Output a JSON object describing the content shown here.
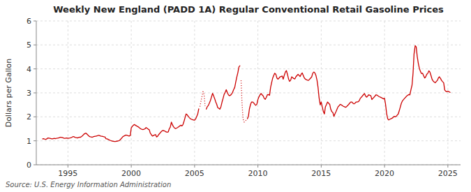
{
  "chart_data": {
    "type": "line",
    "title": "Weekly New England (PADD 1A) Regular Conventional Retail Gasoline Prices",
    "ylabel": "Dollars per Gallon",
    "source": "Source: U.S. Energy Information Administration",
    "xlim": [
      1992.5,
      2026.0
    ],
    "ylim": [
      0,
      6
    ],
    "xticks": [
      1995,
      2000,
      2005,
      2010,
      2015,
      2020,
      2025
    ],
    "yticks": [
      0,
      1,
      2,
      3,
      4,
      5,
      6
    ],
    "grid": true,
    "series": [
      {
        "color": "#cc0000",
        "line_style": "solid",
        "x": [
          1993.0,
          1993.08,
          1993.17,
          1993.25,
          1993.33,
          1993.42,
          1993.5,
          1993.58,
          1993.67,
          1993.75,
          1993.83,
          1993.92,
          1994.0,
          1994.08,
          1994.17,
          1994.25,
          1994.33,
          1994.42,
          1994.5,
          1994.58,
          1994.67,
          1994.75,
          1994.83,
          1994.92,
          1995.0,
          1995.08,
          1995.17,
          1995.25,
          1995.33,
          1995.42,
          1995.5,
          1995.58,
          1995.67,
          1995.75,
          1995.83,
          1995.92,
          1996.0,
          1996.08,
          1996.17,
          1996.25,
          1996.33,
          1996.42,
          1996.5,
          1996.58,
          1996.67,
          1996.75,
          1996.83,
          1996.92,
          1997.0,
          1997.08,
          1997.17,
          1997.25,
          1997.33,
          1997.42,
          1997.5,
          1997.58,
          1997.67,
          1997.75,
          1997.83,
          1997.92,
          1998.0,
          1998.08,
          1998.17,
          1998.25,
          1998.33,
          1998.42,
          1998.5,
          1998.58,
          1998.67,
          1998.75,
          1998.83,
          1998.92,
          1999.0,
          1999.08,
          1999.17,
          1999.25,
          1999.33,
          1999.42,
          1999.5,
          1999.58,
          1999.67,
          1999.75,
          1999.83,
          1999.92,
          2000.0,
          2000.08,
          2000.17,
          2000.25,
          2000.33,
          2000.42,
          2000.5,
          2000.58,
          2000.67,
          2000.75,
          2000.83,
          2000.92,
          2001.0,
          2001.08,
          2001.17,
          2001.25,
          2001.33,
          2001.42,
          2001.5,
          2001.58,
          2001.67,
          2001.75,
          2001.83,
          2001.92,
          2002.0,
          2002.08,
          2002.17,
          2002.25,
          2002.33,
          2002.42,
          2002.5,
          2002.58,
          2002.67,
          2002.75,
          2002.83,
          2002.92,
          2003.0,
          2003.08,
          2003.17,
          2003.25,
          2003.33,
          2003.42,
          2003.5,
          2003.58,
          2003.67,
          2003.75,
          2003.83,
          2003.92,
          2004.0,
          2004.08,
          2004.17,
          2004.25,
          2004.33,
          2004.42,
          2004.5,
          2004.58,
          2004.67,
          2004.75,
          2004.83,
          2004.92,
          2005.0,
          2005.08,
          2005.17,
          2005.25,
          2005.33
        ],
        "values": [
          1.08,
          1.09,
          1.07,
          1.06,
          1.08,
          1.12,
          1.11,
          1.1,
          1.09,
          1.08,
          1.09,
          1.1,
          1.09,
          1.1,
          1.11,
          1.12,
          1.13,
          1.15,
          1.14,
          1.13,
          1.11,
          1.1,
          1.11,
          1.12,
          1.1,
          1.11,
          1.12,
          1.13,
          1.15,
          1.18,
          1.16,
          1.14,
          1.13,
          1.12,
          1.14,
          1.15,
          1.15,
          1.18,
          1.22,
          1.27,
          1.3,
          1.32,
          1.28,
          1.24,
          1.19,
          1.17,
          1.16,
          1.15,
          1.17,
          1.18,
          1.19,
          1.2,
          1.21,
          1.23,
          1.22,
          1.2,
          1.19,
          1.18,
          1.17,
          1.16,
          1.09,
          1.08,
          1.06,
          1.04,
          1.02,
          1.0,
          0.99,
          0.98,
          0.97,
          0.97,
          0.98,
          0.99,
          1.0,
          1.02,
          1.07,
          1.12,
          1.17,
          1.2,
          1.22,
          1.24,
          1.23,
          1.21,
          1.2,
          1.22,
          1.54,
          1.6,
          1.65,
          1.68,
          1.65,
          1.62,
          1.6,
          1.57,
          1.53,
          1.5,
          1.48,
          1.47,
          1.48,
          1.5,
          1.55,
          1.52,
          1.49,
          1.46,
          1.32,
          1.26,
          1.2,
          1.22,
          1.24,
          1.26,
          1.16,
          1.19,
          1.26,
          1.31,
          1.36,
          1.41,
          1.43,
          1.42,
          1.4,
          1.37,
          1.36,
          1.37,
          1.5,
          1.57,
          1.78,
          1.67,
          1.59,
          1.53,
          1.51,
          1.53,
          1.56,
          1.59,
          1.62,
          1.65,
          1.62,
          1.67,
          1.82,
          1.97,
          2.12,
          2.08,
          2.02,
          1.97,
          1.92,
          1.9,
          1.88,
          1.87,
          1.86,
          1.91,
          2.02,
          2.12,
          2.33
        ]
      },
      {
        "color": "#cc0000",
        "line_style": "dotted",
        "x": [
          2005.42,
          2005.5,
          2005.58,
          2005.67,
          2005.75,
          2005.83
        ],
        "values": [
          2.43,
          2.64,
          2.84,
          3.05,
          2.93,
          2.45
        ]
      },
      {
        "color": "#cc0000",
        "line_style": "solid",
        "x": [
          2005.92,
          2006.0,
          2006.08,
          2006.17,
          2006.25,
          2006.33,
          2006.42,
          2006.5,
          2006.58,
          2006.67,
          2006.75,
          2006.83,
          2006.92,
          2007.0,
          2007.08,
          2007.17,
          2007.25,
          2007.33,
          2007.42,
          2007.5,
          2007.58,
          2007.67,
          2007.75,
          2007.83,
          2007.92,
          2008.0,
          2008.08,
          2008.17,
          2008.25,
          2008.33,
          2008.42,
          2008.5,
          2008.58
        ],
        "values": [
          2.32,
          2.42,
          2.47,
          2.58,
          2.68,
          2.82,
          2.98,
          2.88,
          2.77,
          2.62,
          2.52,
          2.38,
          2.35,
          2.32,
          2.42,
          2.62,
          2.77,
          2.93,
          3.03,
          3.13,
          3.02,
          2.92,
          2.88,
          2.9,
          2.95,
          3.02,
          3.13,
          3.23,
          3.45,
          3.65,
          3.85,
          4.08,
          4.13
        ]
      },
      {
        "color": "#cc0000",
        "line_style": "dotted",
        "x": [
          2008.67,
          2008.75,
          2008.83,
          2008.92,
          2009.0,
          2009.08
        ],
        "values": [
          3.52,
          2.52,
          1.9,
          1.78,
          1.82,
          1.87
        ]
      },
      {
        "color": "#cc0000",
        "line_style": "solid",
        "x": [
          2009.17,
          2009.25,
          2009.33,
          2009.42,
          2009.5,
          2009.58,
          2009.67,
          2009.75,
          2009.83,
          2009.92,
          2010.0,
          2010.08,
          2010.17,
          2010.25,
          2010.33,
          2010.42,
          2010.5,
          2010.58,
          2010.67,
          2010.75,
          2010.83,
          2010.92,
          2011.0,
          2011.08,
          2011.17,
          2011.25,
          2011.33,
          2011.42,
          2011.5,
          2011.58,
          2011.67,
          2011.75,
          2011.83,
          2011.92,
          2012.0,
          2012.08,
          2012.17,
          2012.25,
          2012.33,
          2012.42,
          2012.5,
          2012.58,
          2012.67,
          2012.75,
          2012.83,
          2012.92,
          2013.0,
          2013.08,
          2013.17,
          2013.25,
          2013.33,
          2013.42,
          2013.5,
          2013.58,
          2013.67,
          2013.75,
          2013.83,
          2013.92,
          2014.0,
          2014.08,
          2014.17,
          2014.25,
          2014.33,
          2014.42,
          2014.5,
          2014.58,
          2014.67,
          2014.75,
          2014.83,
          2014.92,
          2015.0,
          2015.08,
          2015.17,
          2015.25,
          2015.33,
          2015.42,
          2015.5,
          2015.58,
          2015.67,
          2015.75,
          2015.83,
          2015.92,
          2016.0,
          2016.08,
          2016.17,
          2016.25,
          2016.33,
          2016.42,
          2016.5,
          2016.58,
          2016.67,
          2016.75,
          2016.83,
          2016.92,
          2017.0,
          2017.08,
          2017.17,
          2017.25,
          2017.33,
          2017.42,
          2017.5,
          2017.58,
          2017.67,
          2017.75,
          2017.83,
          2017.92,
          2018.0,
          2018.08,
          2018.17,
          2018.25,
          2018.33,
          2018.42,
          2018.5,
          2018.58,
          2018.67,
          2018.75,
          2018.83,
          2018.92,
          2019.0,
          2019.08,
          2019.17,
          2019.25,
          2019.33,
          2019.42,
          2019.5,
          2019.58,
          2019.67,
          2019.75,
          2019.83,
          2019.92,
          2020.0,
          2020.08,
          2020.17,
          2020.25,
          2020.33,
          2020.42,
          2020.5,
          2020.58,
          2020.67,
          2020.75,
          2020.83,
          2020.92,
          2021.0,
          2021.08,
          2021.17,
          2021.25,
          2021.33,
          2021.42,
          2021.5,
          2021.58,
          2021.67,
          2021.75,
          2021.83,
          2021.92,
          2022.0,
          2022.08,
          2022.17,
          2022.25,
          2022.33,
          2022.42,
          2022.5,
          2022.58,
          2022.67,
          2022.75,
          2022.83,
          2022.92,
          2023.0,
          2023.08,
          2023.17,
          2023.25,
          2023.33,
          2023.42,
          2023.5,
          2023.58,
          2023.67,
          2023.75,
          2023.83,
          2023.92,
          2024.0,
          2024.08,
          2024.17,
          2024.25,
          2024.33,
          2024.42,
          2024.5,
          2024.58,
          2024.67,
          2024.75,
          2024.83,
          2024.92,
          2025.0,
          2025.08,
          2025.17
        ],
        "values": [
          1.92,
          2.02,
          2.33,
          2.52,
          2.62,
          2.62,
          2.58,
          2.52,
          2.48,
          2.53,
          2.72,
          2.83,
          2.92,
          2.97,
          2.92,
          2.87,
          2.77,
          2.73,
          2.82,
          2.92,
          2.93,
          2.9,
          3.22,
          3.42,
          3.62,
          3.73,
          3.82,
          3.77,
          3.62,
          3.57,
          3.62,
          3.67,
          3.68,
          3.7,
          3.57,
          3.73,
          3.87,
          3.93,
          3.78,
          3.58,
          3.48,
          3.52,
          3.67,
          3.63,
          3.6,
          3.58,
          3.67,
          3.72,
          3.77,
          3.73,
          3.68,
          3.78,
          3.83,
          3.73,
          3.62,
          3.57,
          3.55,
          3.53,
          3.52,
          3.57,
          3.62,
          3.67,
          3.82,
          3.87,
          3.83,
          3.73,
          3.52,
          3.22,
          2.8,
          2.5,
          2.62,
          2.42,
          2.22,
          2.12,
          2.42,
          2.52,
          2.62,
          2.57,
          2.52,
          2.32,
          2.22,
          2.18,
          2.02,
          2.12,
          2.22,
          2.32,
          2.42,
          2.47,
          2.52,
          2.5,
          2.47,
          2.44,
          2.42,
          2.4,
          2.42,
          2.47,
          2.52,
          2.57,
          2.62,
          2.62,
          2.57,
          2.54,
          2.57,
          2.62,
          2.62,
          2.63,
          2.67,
          2.77,
          2.82,
          2.87,
          2.92,
          2.97,
          2.87,
          2.82,
          2.87,
          2.92,
          2.9,
          2.88,
          2.72,
          2.77,
          2.82,
          2.87,
          2.92,
          2.9,
          2.87,
          2.84,
          2.82,
          2.8,
          2.78,
          2.75,
          2.77,
          2.52,
          2.12,
          1.92,
          1.87,
          1.9,
          1.92,
          1.94,
          1.97,
          2.02,
          2.0,
          2.02,
          2.07,
          2.12,
          2.27,
          2.42,
          2.57,
          2.67,
          2.72,
          2.77,
          2.82,
          2.87,
          2.9,
          2.93,
          2.92,
          3.12,
          3.32,
          3.82,
          4.63,
          4.97,
          4.92,
          4.52,
          4.22,
          4.02,
          3.9,
          3.8,
          3.82,
          3.72,
          3.62,
          3.67,
          3.77,
          3.82,
          3.92,
          3.87,
          3.72,
          3.57,
          3.5,
          3.45,
          3.42,
          3.47,
          3.52,
          3.62,
          3.67,
          3.6,
          3.52,
          3.47,
          3.42,
          3.12,
          3.07,
          3.05,
          3.07,
          3.05,
          3.02
        ]
      }
    ]
  }
}
